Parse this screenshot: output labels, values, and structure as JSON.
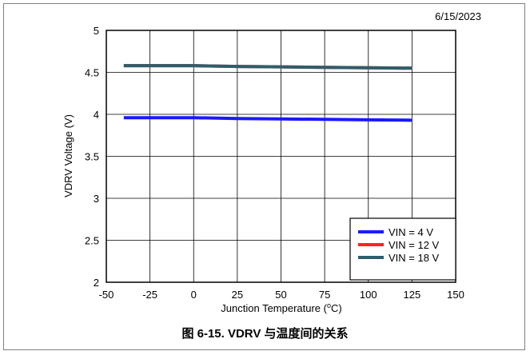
{
  "date_stamp": "6/15/2023",
  "caption": "图 6-15. VDRV 与温度间的关系",
  "chart_data": {
    "type": "line",
    "xlabel": "Junction Temperature (",
    "xlabel_sup": "o",
    "xlabel_tail": "C)",
    "ylabel": "VDRV Voltage (V)",
    "xlim": [
      -50,
      150
    ],
    "ylim": [
      2,
      5
    ],
    "xticks": [
      -50,
      -25,
      0,
      25,
      50,
      75,
      100,
      125,
      150
    ],
    "yticks": [
      2,
      2.5,
      3,
      3.5,
      4,
      4.5,
      5
    ],
    "grid": true,
    "legend_placement": "bottom-right",
    "series": [
      {
        "name": "VIN = 4 V",
        "color": "#1a1aff",
        "x": [
          -40,
          0,
          25,
          50,
          75,
          100,
          125
        ],
        "y": [
          3.96,
          3.96,
          3.95,
          3.945,
          3.94,
          3.935,
          3.93
        ]
      },
      {
        "name": "VIN = 12 V",
        "color": "#ff2222",
        "x": [
          -40,
          0,
          25,
          50,
          75,
          100,
          125
        ],
        "y": [
          4.58,
          4.58,
          4.57,
          4.565,
          4.56,
          4.555,
          4.55
        ]
      },
      {
        "name": "VIN = 18 V",
        "color": "#2e5e6b",
        "x": [
          -40,
          0,
          25,
          50,
          75,
          100,
          125
        ],
        "y": [
          4.58,
          4.58,
          4.57,
          4.565,
          4.56,
          4.555,
          4.55
        ]
      }
    ]
  }
}
